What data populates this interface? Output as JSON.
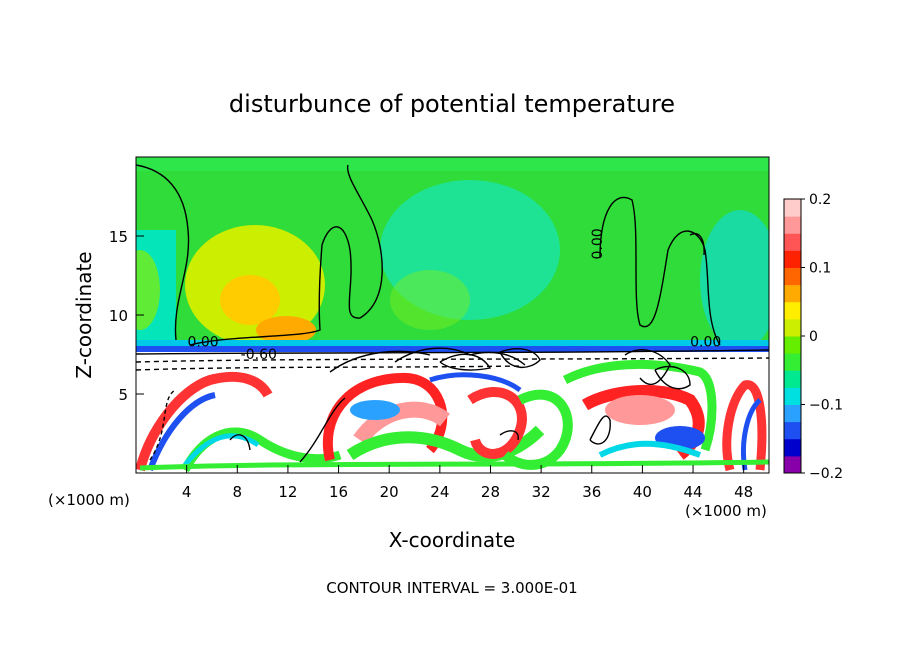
{
  "chart_data": {
    "type": "heatmap",
    "title": "disturbunce of potential temperature",
    "xlabel": "X-coordinate",
    "ylabel": "Z-coordinate",
    "x_unit_left": "(×1000 m)",
    "x_unit_right": "(×1000 m)",
    "xlim": [
      0,
      50
    ],
    "ylim": [
      0,
      20
    ],
    "x_ticks": [
      4,
      8,
      12,
      16,
      20,
      24,
      28,
      32,
      36,
      40,
      44,
      48
    ],
    "y_ticks": [
      5,
      10,
      15
    ],
    "colorbar": {
      "range": [
        -0.2,
        0.2
      ],
      "ticks": [
        {
          "value": 0.2,
          "label": "0.2"
        },
        {
          "value": 0.1,
          "label": "0.1"
        },
        {
          "value": 0,
          "label": "0"
        },
        {
          "value": -0.1,
          "label": "−0.1"
        },
        {
          "value": -0.2,
          "label": "−0.2"
        }
      ],
      "colors": [
        "#8800aa",
        "#0000cc",
        "#1e4ff0",
        "#2aa0ff",
        "#00e0e0",
        "#00e890",
        "#33ee33",
        "#66ee00",
        "#ccee00",
        "#ffee00",
        "#ffaa00",
        "#ff6600",
        "#ff2200",
        "#ff5555",
        "#ff9999",
        "#ffcccc"
      ]
    },
    "contour_labels": [
      {
        "text": "0.00",
        "x": 5.3,
        "z": 8.0
      },
      {
        "text": "-0.60",
        "x": 9.7,
        "z": 7.2
      },
      {
        "text": "0.00",
        "x": 36.8,
        "z": 14.5
      },
      {
        "text": "0.00",
        "x": 45.0,
        "z": 8.0
      }
    ],
    "contour_interval_text": "CONTOUR INTERVAL = 3.000E-01"
  }
}
